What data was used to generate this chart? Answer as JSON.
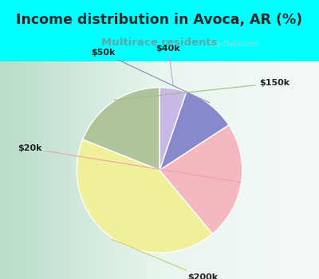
{
  "title": "Income distribution in Avoca, AR (%)",
  "subtitle": "Multirace residents",
  "title_color": "#2a2a2a",
  "subtitle_color": "#5aaaaa",
  "bg_cyan": "#00ffff",
  "watermark": "City-Data.com",
  "labels": [
    "$150k",
    "$200k",
    "$20k",
    "$50k",
    "$40k"
  ],
  "sizes": [
    18,
    40,
    22,
    10,
    5
  ],
  "colors": [
    "#afc49a",
    "#f0f09a",
    "#f5b8c0",
    "#8888cc",
    "#c8b8e8"
  ],
  "startangle": 90,
  "chart_bg_left": "#c8e8d8",
  "chart_bg_right": "#f0f8f8",
  "label_color": "#222222",
  "line_color_150k": "#a0c080",
  "line_color_200k": "#c8c870",
  "line_color_20k": "#f0a0a8",
  "line_color_50k": "#8888bb",
  "line_color_40k": "#b8a8d8"
}
